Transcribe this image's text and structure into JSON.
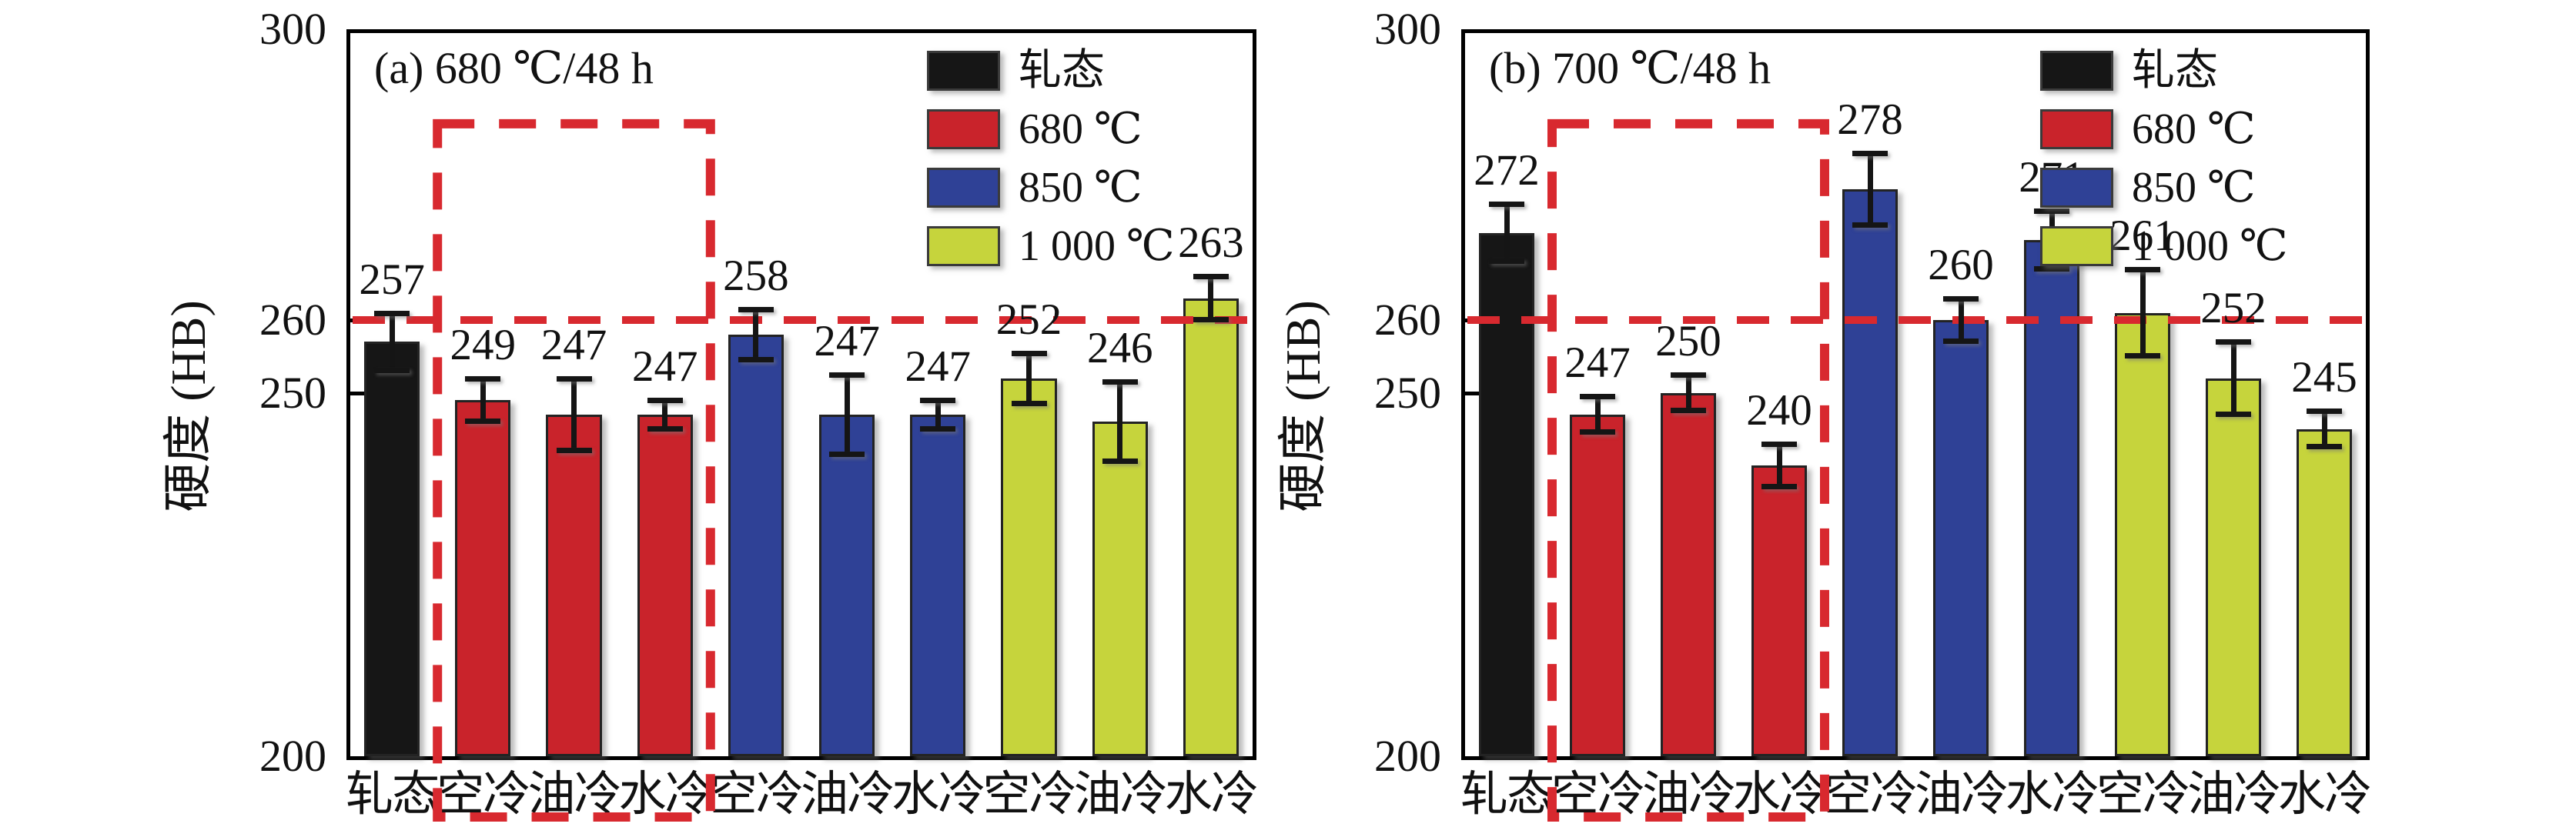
{
  "colors": {
    "bar_black": "#161616",
    "bar_red": "#c9232b",
    "bar_blue": "#2f4196",
    "bar_yellow": "#c6d43c",
    "bar_border": "#232323",
    "dashed_red": "#d8292f",
    "axis": "#000000",
    "text": "#111111"
  },
  "legend": {
    "items": [
      {
        "label": "轧态",
        "color_key": "bar_black"
      },
      {
        "label": "680 ℃",
        "color_key": "bar_red"
      },
      {
        "label": "850 ℃",
        "color_key": "bar_blue"
      },
      {
        "label": "1 000 ℃",
        "color_key": "bar_yellow"
      }
    ]
  },
  "chart_data": [
    {
      "type": "bar",
      "title": "(a) 680 ℃/48 h",
      "xlabel": "",
      "ylabel": "硬度 (HB)",
      "ylim": [
        200,
        300
      ],
      "yticks": [
        300,
        260,
        250,
        200
      ],
      "grid": false,
      "legend_position": "top-right",
      "reference_line_y": 260,
      "categories": [
        "轧态",
        "空冷",
        "油冷",
        "水冷",
        "空冷",
        "油冷",
        "水冷",
        "空冷",
        "油冷",
        "水冷"
      ],
      "group_of_bar": [
        "轧态",
        "680 ℃",
        "680 ℃",
        "680 ℃",
        "850 ℃",
        "850 ℃",
        "850 ℃",
        "1 000 ℃",
        "1 000 ℃",
        "1 000 ℃"
      ],
      "bar_color_keys": [
        "bar_black",
        "bar_red",
        "bar_red",
        "bar_red",
        "bar_blue",
        "bar_blue",
        "bar_blue",
        "bar_yellow",
        "bar_yellow",
        "bar_yellow"
      ],
      "values": [
        257,
        249,
        247,
        247,
        258,
        247,
        247,
        252,
        246,
        263
      ],
      "error_bars": [
        4,
        3,
        5,
        2,
        3.5,
        5.5,
        2,
        3.5,
        5.5,
        3
      ],
      "highlight_box": {
        "from_category_index": 1,
        "to_category_index": 3,
        "top_value": 287,
        "extends_below_axis": true
      }
    },
    {
      "type": "bar",
      "title": "(b) 700 ℃/48 h",
      "xlabel": "",
      "ylabel": "硬度 (HB)",
      "ylim": [
        200,
        300
      ],
      "yticks": [
        300,
        260,
        250,
        200
      ],
      "grid": false,
      "legend_position": "top-right",
      "reference_line_y": 260,
      "categories": [
        "轧态",
        "空冷",
        "油冷",
        "水冷",
        "空冷",
        "油冷",
        "水冷",
        "空冷",
        "油冷",
        "水冷"
      ],
      "group_of_bar": [
        "轧态",
        "680 ℃",
        "680 ℃",
        "680 ℃",
        "850 ℃",
        "850 ℃",
        "850 ℃",
        "1 000 ℃",
        "1 000 ℃",
        "1 000 ℃"
      ],
      "bar_color_keys": [
        "bar_black",
        "bar_red",
        "bar_red",
        "bar_red",
        "bar_blue",
        "bar_blue",
        "bar_blue",
        "bar_yellow",
        "bar_yellow",
        "bar_yellow"
      ],
      "values": [
        272,
        247,
        250,
        240,
        278,
        260,
        271,
        261,
        252,
        245
      ],
      "error_bars": [
        4,
        2.5,
        2.5,
        3,
        5,
        3,
        4,
        6,
        5,
        2.5
      ],
      "highlight_box": {
        "from_category_index": 1,
        "to_category_index": 3,
        "top_value": 287,
        "extends_below_axis": true
      }
    }
  ]
}
